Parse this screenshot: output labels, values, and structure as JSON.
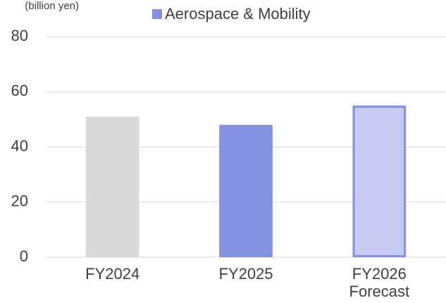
{
  "chart_data": {
    "type": "bar",
    "y_label": "(billion yen)",
    "categories": [
      "FY2024",
      "FY2025",
      "FY2026\nForecast"
    ],
    "series": [
      {
        "name": "Aerospace & Mobility",
        "color": "#8490e0",
        "values": [
          51,
          48,
          55
        ],
        "colors": [
          "#d9d9d9",
          "#8490e0",
          "#c5c9f0"
        ],
        "edge_colors": [
          null,
          null,
          "#8490e0"
        ]
      }
    ],
    "ylim": [
      0,
      80
    ],
    "yticks": [
      0,
      20,
      40,
      60,
      80
    ],
    "grid": true,
    "legend": "top"
  }
}
